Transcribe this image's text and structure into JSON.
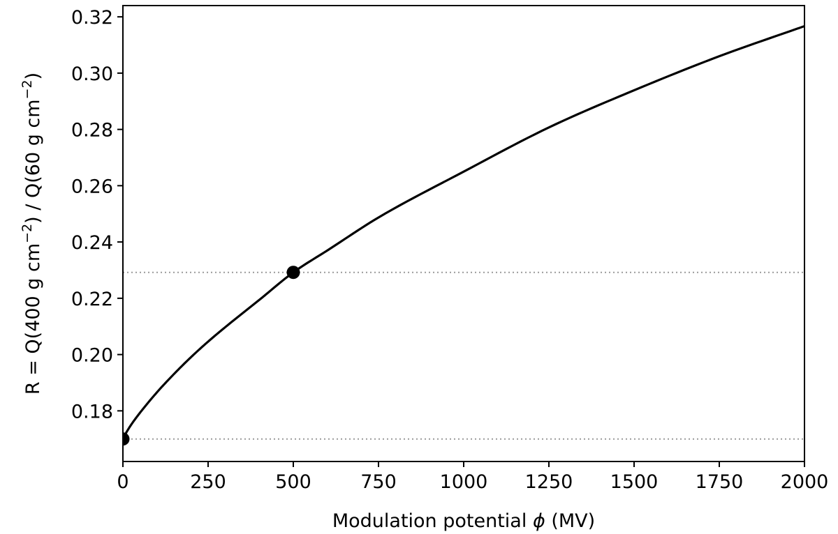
{
  "chart_data": {
    "type": "line",
    "title": "",
    "xlabel_text": "Modulation potential ",
    "xlabel_symbol": "ϕ",
    "xlabel_unit": " (MV)",
    "ylabel_prefix": "R = Q(400 g cm",
    "ylabel_sup1": "−2",
    "ylabel_mid": ") / Q(60 g cm",
    "ylabel_sup2": "−2",
    "ylabel_suffix": ")",
    "xlim": [
      0,
      2000
    ],
    "ylim": [
      0.162,
      0.324
    ],
    "x_ticks": [
      0,
      250,
      500,
      750,
      1000,
      1250,
      1500,
      1750,
      2000
    ],
    "y_ticks": [
      0.18,
      0.2,
      0.22,
      0.24,
      0.26,
      0.28,
      0.3,
      0.32
    ],
    "x_tick_labels": [
      "0",
      "250",
      "500",
      "750",
      "1000",
      "1250",
      "1500",
      "1750",
      "2000"
    ],
    "y_tick_labels": [
      "0.18",
      "0.20",
      "0.22",
      "0.24",
      "0.26",
      "0.28",
      "0.30",
      "0.32"
    ],
    "grid": false,
    "series": [
      {
        "x": [
          0,
          10,
          25,
          50,
          100,
          150,
          200,
          250,
          300,
          400,
          500,
          600,
          750,
          1000,
          1250,
          1500,
          1750,
          2000
        ],
        "y": [
          0.17,
          0.1723,
          0.1752,
          0.1793,
          0.1866,
          0.1931,
          0.1991,
          0.2046,
          0.2097,
          0.2194,
          0.2292,
          0.237,
          0.2487,
          0.265,
          0.2807,
          0.2939,
          0.306,
          0.3167
        ],
        "color": "#000000"
      }
    ],
    "markers": [
      {
        "x": 0,
        "y": 0.17
      },
      {
        "x": 500,
        "y": 0.2292
      }
    ],
    "reference_lines": [
      {
        "y": 0.2292,
        "color": "#999999",
        "style": "dotted"
      },
      {
        "y": 0.17,
        "color": "#999999",
        "style": "dotted"
      }
    ]
  }
}
